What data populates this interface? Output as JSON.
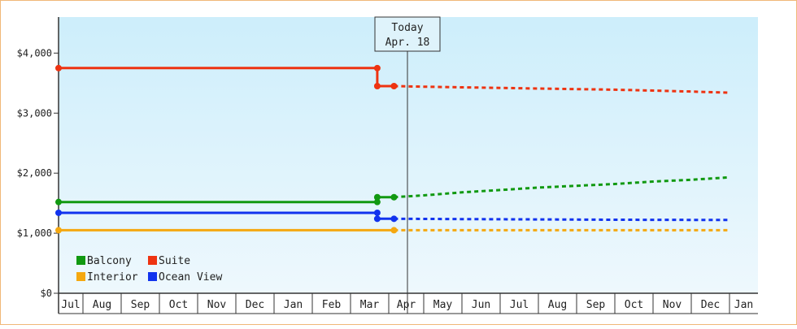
{
  "chart_data": {
    "type": "line",
    "title": "",
    "xlabel": "",
    "ylabel": "",
    "y_tick_labels": [
      "$0",
      "$1,000",
      "$2,000",
      "$3,000",
      "$4,000"
    ],
    "y_tick_values": [
      0,
      1000,
      2000,
      3000,
      4000
    ],
    "ylim": [
      0,
      4600
    ],
    "x_tick_labels": [
      "Jul",
      "Aug",
      "Sep",
      "Oct",
      "Nov",
      "Dec",
      "Jan",
      "Feb",
      "Mar",
      "Apr",
      "May",
      "Jun",
      "Jul",
      "Aug",
      "Sep",
      "Oct",
      "Nov",
      "Dec",
      "Jan"
    ],
    "xlim": [
      "Jul",
      "Jan"
    ],
    "grid": false,
    "background": "light blue gradient",
    "legend_position": "bottom-left",
    "today_marker": {
      "line1": "Today",
      "line2": "Apr. 18",
      "x": 9.15
    },
    "series": [
      {
        "name": "Balcony",
        "color": "#119911",
        "historical": [
          [
            0,
            1520
          ],
          [
            8.7,
            1520
          ],
          [
            8.7,
            1600
          ],
          [
            9.15,
            1600
          ]
        ],
        "forecast": [
          [
            9.15,
            1600
          ],
          [
            10,
            1630
          ],
          [
            11,
            1680
          ],
          [
            12,
            1720
          ],
          [
            13,
            1760
          ],
          [
            14,
            1790
          ],
          [
            15,
            1820
          ],
          [
            16,
            1860
          ],
          [
            17,
            1890
          ],
          [
            18,
            1930
          ]
        ]
      },
      {
        "name": "Suite",
        "color": "#ee3311",
        "historical": [
          [
            0,
            3750
          ],
          [
            8.7,
            3750
          ],
          [
            8.7,
            3450
          ],
          [
            9.15,
            3450
          ]
        ],
        "forecast": [
          [
            9.15,
            3450
          ],
          [
            10,
            3440
          ],
          [
            11,
            3430
          ],
          [
            12,
            3420
          ],
          [
            13,
            3410
          ],
          [
            14,
            3400
          ],
          [
            15,
            3390
          ],
          [
            16,
            3375
          ],
          [
            17,
            3360
          ],
          [
            18,
            3340
          ]
        ]
      },
      {
        "name": "Interior",
        "color": "#f5a810",
        "historical": [
          [
            0,
            1050
          ],
          [
            9.15,
            1050
          ]
        ],
        "forecast": [
          [
            9.15,
            1050
          ],
          [
            18,
            1050
          ]
        ]
      },
      {
        "name": "Ocean View",
        "color": "#1133ee",
        "historical": [
          [
            0,
            1340
          ],
          [
            8.7,
            1340
          ],
          [
            8.7,
            1240
          ],
          [
            9.15,
            1240
          ]
        ],
        "forecast": [
          [
            9.15,
            1240
          ],
          [
            11,
            1235
          ],
          [
            13,
            1230
          ],
          [
            15,
            1225
          ],
          [
            18,
            1220
          ]
        ]
      }
    ],
    "legend": [
      {
        "label": "Balcony",
        "color": "#119911"
      },
      {
        "label": "Suite",
        "color": "#ee3311"
      },
      {
        "label": "Interior",
        "color": "#f5a810"
      },
      {
        "label": "Ocean View",
        "color": "#1133ee"
      }
    ]
  }
}
